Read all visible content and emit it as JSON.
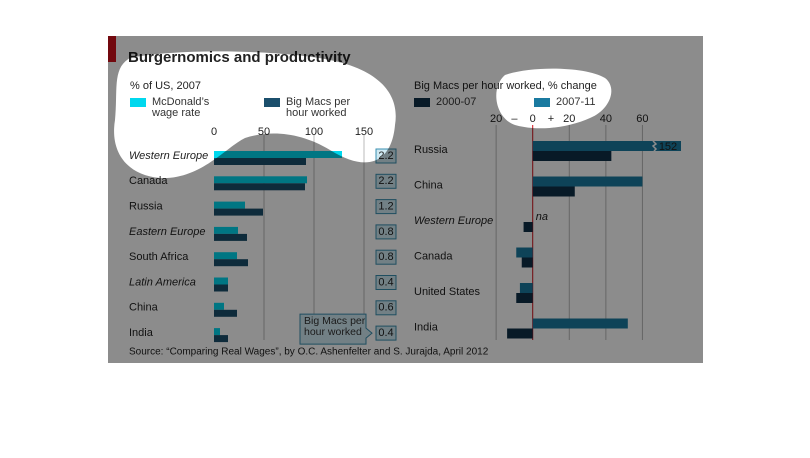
{
  "title": "Burgernomics and productivity",
  "source": "Source: “Comparing Real Wages”, by O.C. Ashenfelter and S. Jurajda, April 2012",
  "chart_data": [
    {
      "type": "bar",
      "orientation": "horizontal",
      "subtitle": "% of US, 2007",
      "categories": [
        "Western Europe",
        "Canada",
        "Russia",
        "Eastern Europe",
        "South Africa",
        "Latin America",
        "China",
        "India"
      ],
      "italic": [
        true,
        false,
        false,
        true,
        false,
        true,
        false,
        false
      ],
      "series": [
        {
          "name": "McDonald’s wage rate",
          "color": "#00d8ee",
          "values": [
            128,
            93,
            31,
            24,
            23,
            14,
            10,
            6
          ]
        },
        {
          "name": "Big Macs per hour worked",
          "color": "#1b4f6c",
          "values": [
            92,
            91,
            49,
            33,
            34,
            14,
            23,
            14
          ]
        }
      ],
      "box_label": "Big Macs per hour worked",
      "box_values": [
        2.2,
        2.2,
        1.2,
        0.8,
        0.8,
        0.4,
        0.6,
        0.4
      ],
      "xlim": [
        0,
        150
      ],
      "xticks": [
        0,
        50,
        100,
        150
      ],
      "grid": true
    },
    {
      "type": "bar",
      "orientation": "horizontal",
      "subtitle": "Big Macs per hour worked, % change",
      "categories": [
        "Russia",
        "China",
        "Western Europe",
        "Canada",
        "United States",
        "India"
      ],
      "italic": [
        false,
        false,
        true,
        false,
        false,
        false
      ],
      "series": [
        {
          "name": "2000-07",
          "color": "#0f3148",
          "values": [
            43,
            23,
            -5,
            -6,
            -9,
            -14
          ]
        },
        {
          "name": "2007-11",
          "color": "#1a7aa0",
          "values": [
            152,
            60,
            null,
            -9,
            -7,
            52
          ],
          "value_labels": [
            "152",
            null,
            "na",
            null,
            null,
            null
          ]
        }
      ],
      "axis_signs": [
        "–",
        "+"
      ],
      "xlim": [
        -25,
        80
      ],
      "xticks": [
        {
          "value": -20,
          "label": "20"
        },
        0,
        20,
        40,
        60
      ],
      "grid": true
    }
  ]
}
